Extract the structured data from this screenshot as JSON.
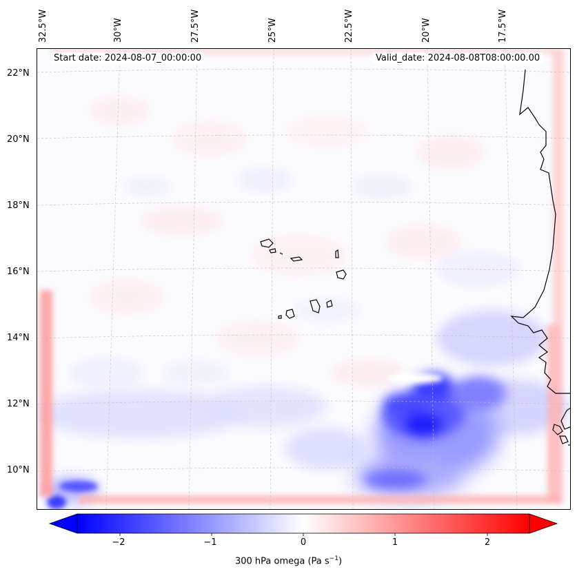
{
  "map": {
    "start_date": "Start date: 2024-08-07_00:00:00",
    "valid_date": "Valid_date: 2024-08-08T08:00:00.00",
    "longitude_labels": [
      "32.5°W",
      "30°W",
      "27.5°W",
      "25°W",
      "22.5°W",
      "20°W",
      "17.5°W"
    ],
    "latitude_labels": [
      "22°N",
      "20°N",
      "18°N",
      "16°N",
      "14°N",
      "12°N",
      "10°N"
    ],
    "field": "300 hPa omega",
    "region": "Cabo Verde islands and West African coast"
  },
  "colorbar": {
    "label_prefix": "300 hPa omega (Pa s",
    "label_exponent": "−1",
    "label_suffix": ")",
    "tick_labels": [
      "−2",
      "−1",
      "0",
      "1",
      "2"
    ],
    "tick_values": [
      -2,
      -1,
      0,
      1,
      2
    ],
    "range": [
      -2.6,
      2.6
    ],
    "colormap": "bwr",
    "color_low": "#0000ff",
    "color_mid": "#ffffff",
    "color_high": "#ff0000"
  }
}
